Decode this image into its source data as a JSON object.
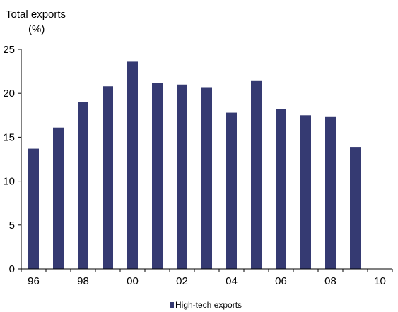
{
  "chart_data": {
    "type": "bar",
    "title": "",
    "ylabel_lines": [
      "Total exports",
      "(%)"
    ],
    "xlabel": "",
    "categories": [
      "96",
      "97",
      "98",
      "99",
      "00",
      "01",
      "02",
      "03",
      "04",
      "05",
      "06",
      "07",
      "08",
      "09",
      "10"
    ],
    "x_tick_labels": [
      "96",
      "",
      "98",
      "",
      "00",
      "",
      "02",
      "",
      "04",
      "",
      "06",
      "",
      "08",
      "",
      "10"
    ],
    "y_ticks": [
      "0",
      "5",
      "10",
      "15",
      "20",
      "25"
    ],
    "ylim": [
      0,
      25
    ],
    "series": [
      {
        "name": "High-tech exports",
        "color": "#353a72",
        "values": [
          13.7,
          16.1,
          19.0,
          20.8,
          23.6,
          21.2,
          21.0,
          20.7,
          17.8,
          21.4,
          18.2,
          17.5,
          17.3,
          13.9,
          null
        ]
      }
    ],
    "legend": {
      "position": "bottom-center",
      "entries": [
        "High-tech exports"
      ]
    },
    "grid": false
  }
}
